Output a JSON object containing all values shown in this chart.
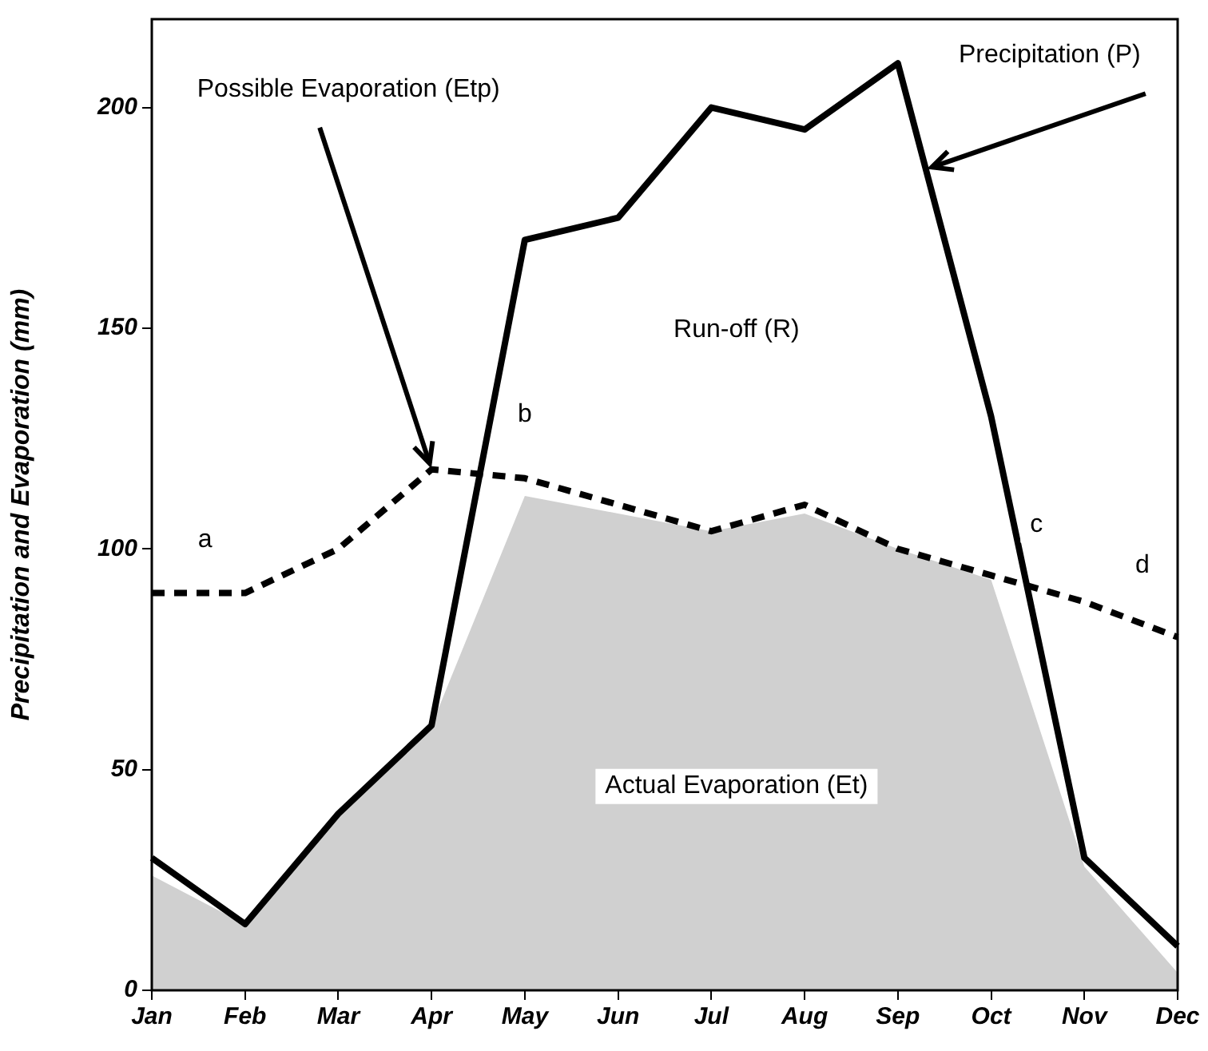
{
  "chart_data": {
    "type": "line",
    "ylabel": "Precipitation and Evaporation (mm)",
    "categories": [
      "Jan",
      "Feb",
      "Mar",
      "Apr",
      "May",
      "Jun",
      "Jul",
      "Aug",
      "Sep",
      "Oct",
      "Nov",
      "Dec"
    ],
    "ylim": [
      0,
      220
    ],
    "yticks": [
      0,
      50,
      100,
      150,
      200
    ],
    "grid": false,
    "legend": false,
    "series": [
      {
        "type": "line",
        "color": "#000000",
        "line_style": "solid",
        "values": [
          30,
          15,
          40,
          60,
          170,
          175,
          200,
          195,
          210,
          130,
          30,
          10
        ]
      },
      {
        "type": "line",
        "color": "#000000",
        "line_style": "dashed",
        "values": [
          90,
          90,
          100,
          118,
          116,
          110,
          104,
          110,
          100,
          94,
          88,
          80
        ]
      },
      {
        "type": "area",
        "color": "#d0d0d0",
        "values": [
          26,
          15,
          40,
          60,
          112,
          108,
          104,
          108,
          100,
          93,
          28,
          4
        ]
      }
    ],
    "annotations": [
      {
        "text": "Possible Evaporation (Etp)",
        "x": "Apr",
        "y": 118
      },
      {
        "text": "Precipitation (P)",
        "x": "Sep",
        "y": 210
      },
      "Run-off (R)",
      {
        "text": "a",
        "x": "Feb",
        "y": 90
      },
      {
        "text": "b",
        "x": "May",
        "y": 116
      },
      {
        "text": "c",
        "x": "Nov",
        "y": 88
      },
      {
        "text": "d",
        "x": "Dec",
        "y": 80
      },
      "Actual Evaporation (Et)"
    ]
  }
}
